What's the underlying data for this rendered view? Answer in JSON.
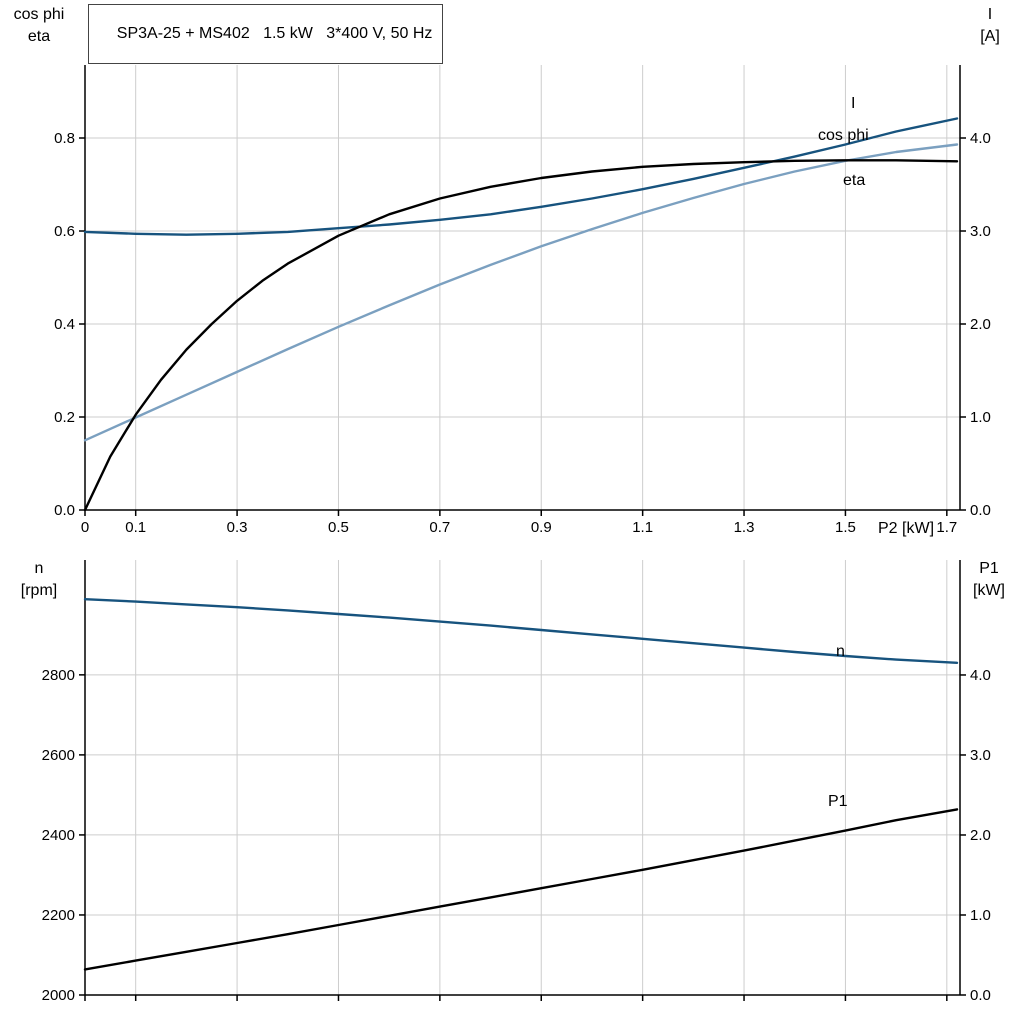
{
  "title": "SP3A-25 + MS402   1.5 kW   3*400 V, 50 Hz",
  "corner_labels": {
    "top_left": [
      "cos phi",
      "eta"
    ],
    "top_right": [
      "I",
      "[A]"
    ],
    "bottom_left": [
      "n",
      "[rpm]"
    ],
    "bottom_right": [
      "P1",
      "[kW]"
    ]
  },
  "colors": {
    "dark_blue": "#17537e",
    "light_blue": "#7ba0c0",
    "black": "#000000",
    "grid": "#cdcdcd",
    "axis": "#000000"
  },
  "chart_data": [
    {
      "type": "line",
      "title": "SP3A-25 + MS402   1.5 kW   3*400 V, 50 Hz",
      "x_axis": {
        "label": "P2 [kW]",
        "range": [
          0,
          1.726
        ],
        "tick_values": [
          0,
          0.1,
          0.3,
          0.5,
          0.7,
          0.9,
          1.1,
          1.3,
          1.5,
          1.7
        ],
        "tick_labels": [
          "0",
          "0.1",
          "0.3",
          "0.5",
          "0.7",
          "0.9",
          "1.1",
          "1.3",
          "1.5",
          "1.7"
        ]
      },
      "y_left": {
        "label": "cos phi / eta",
        "range": [
          0,
          0.957
        ],
        "tick_values": [
          0,
          0.2,
          0.4,
          0.6,
          0.8
        ],
        "tick_labels": [
          "0.0",
          "0.2",
          "0.4",
          "0.6",
          "0.8"
        ]
      },
      "y_right": {
        "label": "I [A]",
        "range": [
          0,
          4.785
        ],
        "tick_values": [
          0,
          1,
          2,
          3,
          4
        ],
        "tick_labels": [
          "0.0",
          "1.0",
          "2.0",
          "3.0",
          "4.0"
        ]
      },
      "grid": true,
      "legend_position": "curve-end-labels",
      "series": [
        {
          "name": "I",
          "axis": "right",
          "color": "#17537e",
          "x": [
            0,
            0.1,
            0.2,
            0.3,
            0.4,
            0.5,
            0.6,
            0.7,
            0.8,
            0.9,
            1.0,
            1.1,
            1.2,
            1.3,
            1.4,
            1.5,
            1.6,
            1.72
          ],
          "values": [
            2.99,
            2.97,
            2.96,
            2.97,
            2.99,
            3.03,
            3.07,
            3.12,
            3.18,
            3.26,
            3.35,
            3.45,
            3.56,
            3.68,
            3.8,
            3.93,
            4.07,
            4.21
          ]
        },
        {
          "name": "cos phi",
          "axis": "left",
          "color": "#7ba0c0",
          "x": [
            0,
            0.1,
            0.2,
            0.3,
            0.4,
            0.5,
            0.6,
            0.7,
            0.8,
            0.9,
            1.0,
            1.1,
            1.2,
            1.3,
            1.4,
            1.5,
            1.6,
            1.72
          ],
          "values": [
            0.15,
            0.199,
            0.248,
            0.297,
            0.346,
            0.394,
            0.44,
            0.485,
            0.527,
            0.567,
            0.604,
            0.639,
            0.671,
            0.701,
            0.728,
            0.751,
            0.77,
            0.786
          ]
        },
        {
          "name": "eta",
          "axis": "left",
          "color": "#000000",
          "x": [
            0,
            0.05,
            0.1,
            0.15,
            0.2,
            0.25,
            0.3,
            0.35,
            0.4,
            0.5,
            0.6,
            0.7,
            0.8,
            0.9,
            1.0,
            1.1,
            1.2,
            1.3,
            1.4,
            1.5,
            1.6,
            1.72
          ],
          "values": [
            0,
            0.115,
            0.205,
            0.28,
            0.345,
            0.4,
            0.45,
            0.493,
            0.53,
            0.59,
            0.636,
            0.67,
            0.695,
            0.714,
            0.728,
            0.738,
            0.744,
            0.748,
            0.751,
            0.752,
            0.752,
            0.75
          ]
        }
      ]
    },
    {
      "type": "line",
      "title": "",
      "x_axis": {
        "label": "",
        "range": [
          0,
          1.726
        ],
        "tick_values": [
          0,
          0.1,
          0.3,
          0.5,
          0.7,
          0.9,
          1.1,
          1.3,
          1.5,
          1.7
        ],
        "tick_labels": []
      },
      "y_left": {
        "label": "n [rpm]",
        "range": [
          2000,
          3087
        ],
        "tick_values": [
          2000,
          2200,
          2400,
          2600,
          2800
        ],
        "tick_labels": [
          "2000",
          "2200",
          "2400",
          "2600",
          "2800"
        ]
      },
      "y_right": {
        "label": "P1 [kW]",
        "range": [
          0,
          5.437
        ],
        "tick_values": [
          0,
          1,
          2,
          3,
          4
        ],
        "tick_labels": [
          "0.0",
          "1.0",
          "2.0",
          "3.0",
          "4.0"
        ]
      },
      "grid": true,
      "legend_position": "curve-end-labels",
      "series": [
        {
          "name": "n",
          "axis": "left",
          "color": "#17537e",
          "x": [
            0,
            0.1,
            0.2,
            0.3,
            0.4,
            0.5,
            0.6,
            0.7,
            0.8,
            0.9,
            1.0,
            1.1,
            1.2,
            1.3,
            1.4,
            1.5,
            1.6,
            1.72
          ],
          "values": [
            2989,
            2983,
            2976,
            2969,
            2961,
            2952,
            2943,
            2933,
            2923,
            2912,
            2901,
            2890,
            2879,
            2868,
            2857,
            2847,
            2838,
            2830
          ]
        },
        {
          "name": "P1",
          "axis": "right",
          "color": "#000000",
          "x": [
            0,
            0.1,
            0.2,
            0.3,
            0.4,
            0.5,
            0.6,
            0.7,
            0.8,
            0.9,
            1.0,
            1.1,
            1.2,
            1.3,
            1.4,
            1.5,
            1.6,
            1.72
          ],
          "values": [
            0.32,
            0.43,
            0.54,
            0.65,
            0.76,
            0.875,
            0.99,
            1.105,
            1.22,
            1.335,
            1.45,
            1.565,
            1.685,
            1.805,
            1.93,
            2.055,
            2.185,
            2.32
          ]
        }
      ]
    }
  ]
}
